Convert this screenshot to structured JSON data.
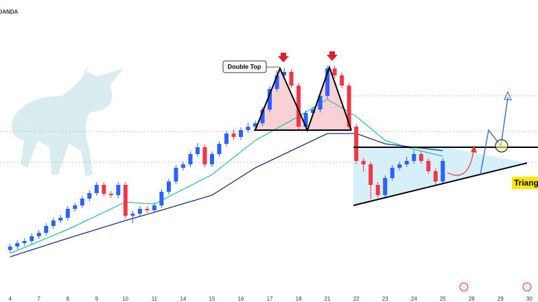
{
  "chart_data": {
    "type": "candlestick",
    "source": "OANDA",
    "annotations": {
      "pattern_1": "Double Top",
      "pattern_2": "Triangle"
    },
    "xlim": [
      -1.4,
      73.2
    ],
    "ylim": [
      0,
      441
    ],
    "xticks": [
      {
        "value": 0,
        "label": "4"
      },
      {
        "value": 4,
        "label": "7"
      },
      {
        "value": 8,
        "label": "8"
      },
      {
        "value": 12,
        "label": "9"
      },
      {
        "value": 16,
        "label": "10"
      },
      {
        "value": 20,
        "label": "11"
      },
      {
        "value": 24,
        "label": "14"
      },
      {
        "value": 28,
        "label": "15"
      },
      {
        "value": 32,
        "label": "16"
      },
      {
        "value": 36,
        "label": "17"
      },
      {
        "value": 40,
        "label": "18"
      },
      {
        "value": 44,
        "label": "21"
      },
      {
        "value": 48,
        "label": "22"
      },
      {
        "value": 52,
        "label": "23"
      },
      {
        "value": 56,
        "label": "24"
      },
      {
        "value": 60,
        "label": "25"
      },
      {
        "value": 64,
        "label": "28"
      },
      {
        "value": 68,
        "label": "29"
      },
      {
        "value": 72,
        "label": "30"
      }
    ],
    "up_color": "#2962ff",
    "down_color": "#f23645",
    "open": [
      76,
      81,
      86,
      89,
      96,
      101,
      111,
      119,
      123,
      136,
      141,
      151,
      159,
      171,
      158,
      156,
      171,
      126,
      129,
      136,
      134,
      141,
      161,
      176,
      196,
      201,
      216,
      226,
      201,
      216,
      231,
      246,
      241,
      251,
      256,
      261,
      281,
      311,
      331,
      336,
      316,
      256,
      276,
      281,
      301,
      341,
      331,
      316,
      256,
      206,
      201,
      171,
      156,
      181,
      196,
      201,
      206,
      216,
      206,
      191,
      176
    ],
    "high": [
      85,
      90,
      93,
      100,
      105,
      115,
      123,
      127,
      140,
      145,
      155,
      163,
      175,
      175,
      162,
      175,
      175,
      133,
      140,
      140,
      145,
      165,
      180,
      200,
      205,
      220,
      232,
      230,
      220,
      235,
      250,
      252,
      255,
      262,
      265,
      285,
      315,
      338,
      342,
      340,
      320,
      280,
      285,
      305,
      345,
      345,
      335,
      320,
      260,
      210,
      205,
      175,
      185,
      200,
      205,
      212,
      222,
      220,
      210,
      195,
      210
    ],
    "low": [
      72,
      77,
      82,
      85,
      92,
      97,
      107,
      115,
      119,
      132,
      137,
      147,
      155,
      154,
      152,
      152,
      122,
      115,
      125,
      130,
      130,
      137,
      157,
      172,
      192,
      197,
      212,
      197,
      197,
      212,
      227,
      237,
      237,
      247,
      252,
      257,
      277,
      307,
      327,
      312,
      252,
      252,
      272,
      277,
      297,
      327,
      312,
      252,
      202,
      190,
      150,
      152,
      152,
      177,
      192,
      197,
      202,
      202,
      187,
      170,
      172
    ],
    "close": [
      81,
      86,
      89,
      96,
      101,
      111,
      119,
      123,
      136,
      141,
      151,
      159,
      171,
      158,
      156,
      171,
      126,
      129,
      136,
      134,
      141,
      161,
      176,
      196,
      201,
      216,
      226,
      201,
      216,
      231,
      246,
      241,
      251,
      256,
      261,
      281,
      311,
      331,
      336,
      316,
      256,
      276,
      281,
      301,
      341,
      331,
      316,
      256,
      206,
      201,
      171,
      156,
      181,
      196,
      201,
      206,
      216,
      206,
      191,
      176,
      206
    ],
    "moving_averages": [
      {
        "color": "#26c6a6",
        "x": [
          0,
          8,
          16,
          20,
          28,
          34,
          40,
          44,
          48,
          52,
          56,
          60
        ],
        "values": [
          71,
          106,
          146,
          143,
          186,
          236,
          271,
          296,
          271,
          236,
          223,
          213
        ]
      },
      {
        "color": "#1a2f8a",
        "x": [
          0,
          8,
          16,
          20,
          28,
          34,
          40,
          44,
          48,
          52,
          56,
          60
        ],
        "values": [
          66,
          93,
          119,
          131,
          156,
          196,
          226,
          246,
          246,
          231,
          226,
          221
        ]
      }
    ]
  }
}
